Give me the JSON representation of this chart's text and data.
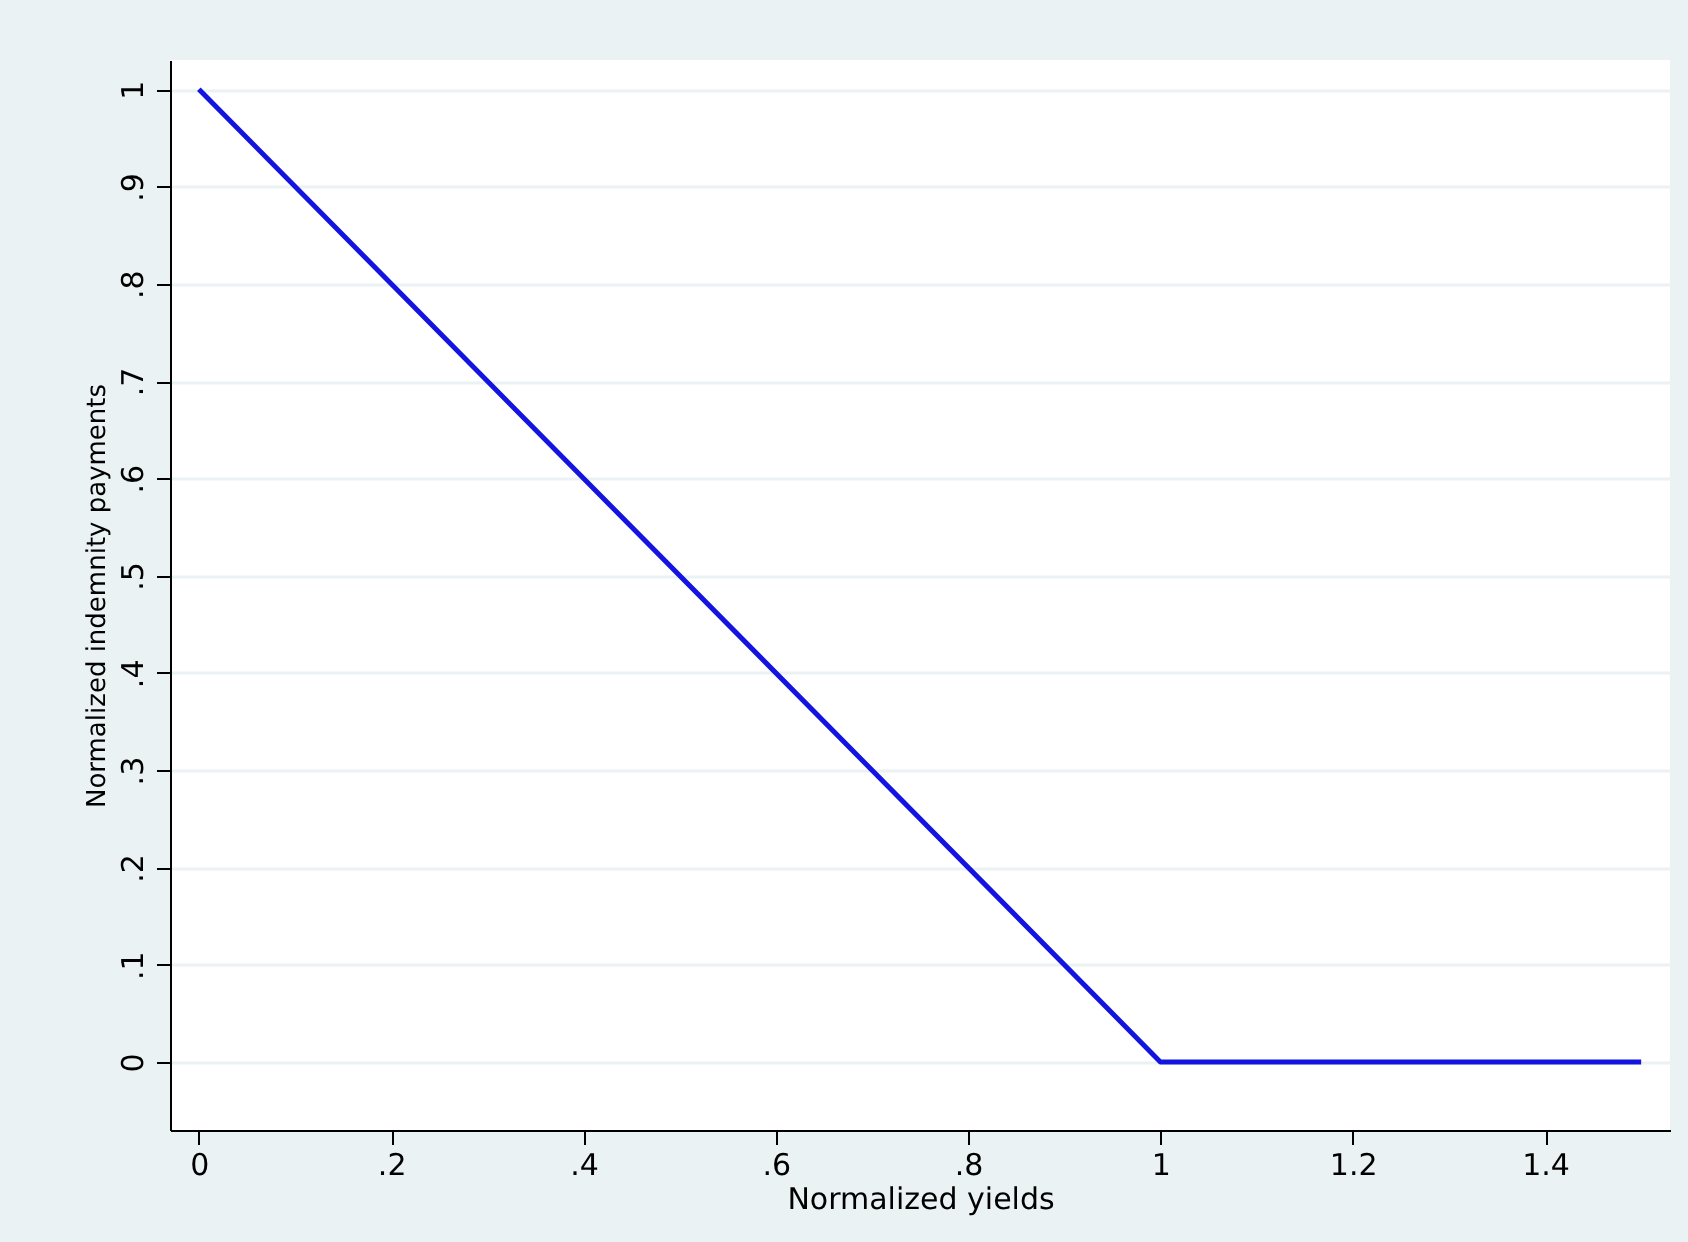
{
  "chart_data": {
    "type": "line",
    "xlabel": "Normalized yields",
    "ylabel": "Normalized indemnity payments",
    "x": [
      0,
      1,
      1.5
    ],
    "series": [
      {
        "color": "#1414e0",
        "values": [
          1,
          0,
          0
        ]
      }
    ],
    "xlim": [
      -0.03,
      1.53
    ],
    "ylim": [
      -0.07,
      1.03
    ],
    "xticks": [
      0,
      {
        "value": 0.2,
        "label": ".2"
      },
      {
        "value": 0.4,
        "label": ".4"
      },
      {
        "value": 0.6,
        "label": ".6"
      },
      {
        "value": 0.8,
        "label": ".8"
      },
      1,
      1.2,
      1.4
    ],
    "yticks": [
      0,
      {
        "value": 0.1,
        "label": ".1"
      },
      {
        "value": 0.2,
        "label": ".2"
      },
      {
        "value": 0.3,
        "label": ".3"
      },
      {
        "value": 0.4,
        "label": ".4"
      },
      {
        "value": 0.5,
        "label": ".5"
      },
      {
        "value": 0.6,
        "label": ".6"
      },
      {
        "value": 0.7,
        "label": ".7"
      },
      {
        "value": 0.8,
        "label": ".8"
      },
      {
        "value": 0.9,
        "label": ".9"
      },
      1
    ],
    "grid": "y",
    "marker": "none",
    "line_style": "solid"
  }
}
